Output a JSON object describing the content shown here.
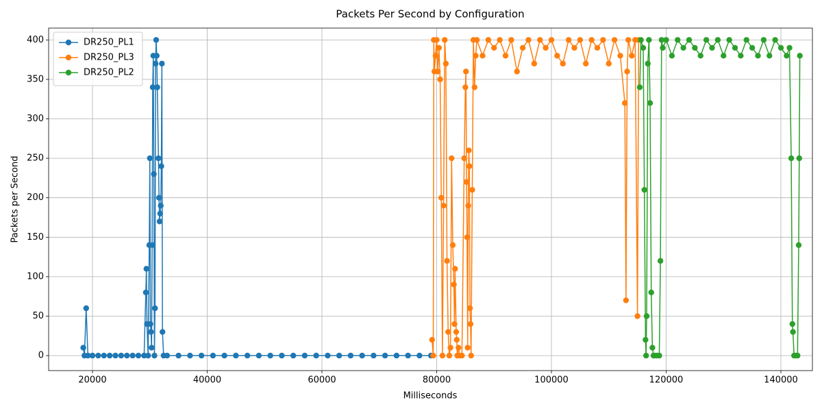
{
  "chart_data": {
    "type": "line",
    "title": "Packets Per Second by Configuration",
    "xlabel": "Milliseconds",
    "ylabel": "Packets per Second",
    "xlim": [
      12358,
      145493
    ],
    "ylim": [
      -19,
      415
    ],
    "xticks": [
      20000,
      40000,
      60000,
      80000,
      100000,
      120000,
      140000
    ],
    "yticks": [
      0,
      50,
      100,
      150,
      200,
      250,
      300,
      350,
      400
    ],
    "grid": true,
    "legend": "upper-left",
    "series": [
      {
        "name": "DR250_PL1",
        "color": "#1f77b4",
        "x": [
          18400,
          18600,
          18900,
          19200,
          20000,
          21000,
          22000,
          23000,
          24000,
          25000,
          26000,
          27000,
          28000,
          29000,
          29300,
          29400,
          29500,
          29700,
          29900,
          30000,
          30100,
          30200,
          30300,
          30400,
          30500,
          30600,
          30700,
          30800,
          30900,
          31000,
          31100,
          31200,
          31300,
          31500,
          31600,
          31700,
          31800,
          31900,
          32000,
          32100,
          32200,
          32400,
          33000,
          35000,
          37000,
          39000,
          41000,
          43000,
          45000,
          47000,
          49000,
          51000,
          53000,
          55000,
          57000,
          59000,
          61000,
          63000,
          65000,
          67000,
          69000,
          71000,
          73000,
          75000,
          77000,
          79000
        ],
        "values": [
          10,
          0,
          60,
          0,
          0,
          0,
          0,
          0,
          0,
          0,
          0,
          0,
          0,
          0,
          80,
          110,
          40,
          0,
          140,
          250,
          40,
          30,
          10,
          140,
          340,
          380,
          230,
          0,
          60,
          370,
          400,
          380,
          340,
          250,
          200,
          170,
          180,
          190,
          240,
          370,
          30,
          0,
          0,
          0,
          0,
          0,
          0,
          0,
          0,
          0,
          0,
          0,
          0,
          0,
          0,
          0,
          0,
          0,
          0,
          0,
          0,
          0,
          0,
          0,
          0,
          0
        ]
      },
      {
        "name": "DR250_PL3",
        "color": "#ff7f0e",
        "x": [
          79200,
          79400,
          79500,
          79600,
          79800,
          80000,
          80200,
          80400,
          80600,
          80800,
          81000,
          81200,
          81400,
          81600,
          81800,
          82000,
          82200,
          82400,
          82600,
          82800,
          83000,
          83100,
          83200,
          83400,
          83500,
          83600,
          83800,
          84000,
          84400,
          84800,
          85000,
          85100,
          85200,
          85300,
          85400,
          85500,
          85600,
          85700,
          85800,
          85900,
          86000,
          86200,
          86400,
          86600,
          86800,
          87000,
          88000,
          89000,
          90000,
          91000,
          92000,
          93000,
          94000,
          95000,
          96000,
          97000,
          98000,
          99000,
          100000,
          101000,
          102000,
          103000,
          104000,
          105000,
          106000,
          107000,
          108000,
          109000,
          110000,
          111000,
          112000,
          112800,
          113000,
          113200,
          113400,
          114000,
          114600,
          115000,
          115200
        ],
        "values": [
          20,
          0,
          400,
          360,
          380,
          400,
          360,
          390,
          350,
          200,
          0,
          190,
          400,
          370,
          120,
          30,
          0,
          10,
          250,
          140,
          90,
          40,
          110,
          30,
          20,
          0,
          10,
          0,
          0,
          250,
          340,
          360,
          220,
          150,
          10,
          190,
          260,
          240,
          60,
          40,
          0,
          210,
          400,
          340,
          380,
          400,
          380,
          400,
          390,
          400,
          380,
          400,
          360,
          390,
          400,
          370,
          400,
          390,
          400,
          380,
          370,
          400,
          390,
          400,
          370,
          400,
          390,
          400,
          370,
          400,
          380,
          320,
          70,
          360,
          400,
          380,
          400,
          50,
          400
        ]
      },
      {
        "name": "DR250_PL2",
        "color": "#2ca02c",
        "x": [
          115400,
          115600,
          116000,
          116200,
          116400,
          116500,
          116600,
          116800,
          117000,
          117200,
          117400,
          117600,
          117800,
          118000,
          118400,
          118800,
          119000,
          119200,
          119400,
          120000,
          121000,
          122000,
          123000,
          124000,
          125000,
          126000,
          127000,
          128000,
          129000,
          130000,
          131000,
          132000,
          133000,
          134000,
          135000,
          136000,
          137000,
          138000,
          139000,
          140000,
          141000,
          141500,
          141800,
          142000,
          142100,
          142300,
          142600,
          142900,
          143100,
          143200,
          143300
        ],
        "values": [
          340,
          400,
          390,
          210,
          20,
          0,
          50,
          370,
          400,
          320,
          80,
          10,
          0,
          0,
          0,
          0,
          120,
          400,
          390,
          400,
          380,
          400,
          390,
          400,
          390,
          380,
          400,
          390,
          400,
          380,
          400,
          390,
          380,
          400,
          390,
          380,
          400,
          380,
          400,
          390,
          380,
          390,
          250,
          40,
          30,
          0,
          0,
          0,
          140,
          250,
          380
        ]
      }
    ]
  }
}
